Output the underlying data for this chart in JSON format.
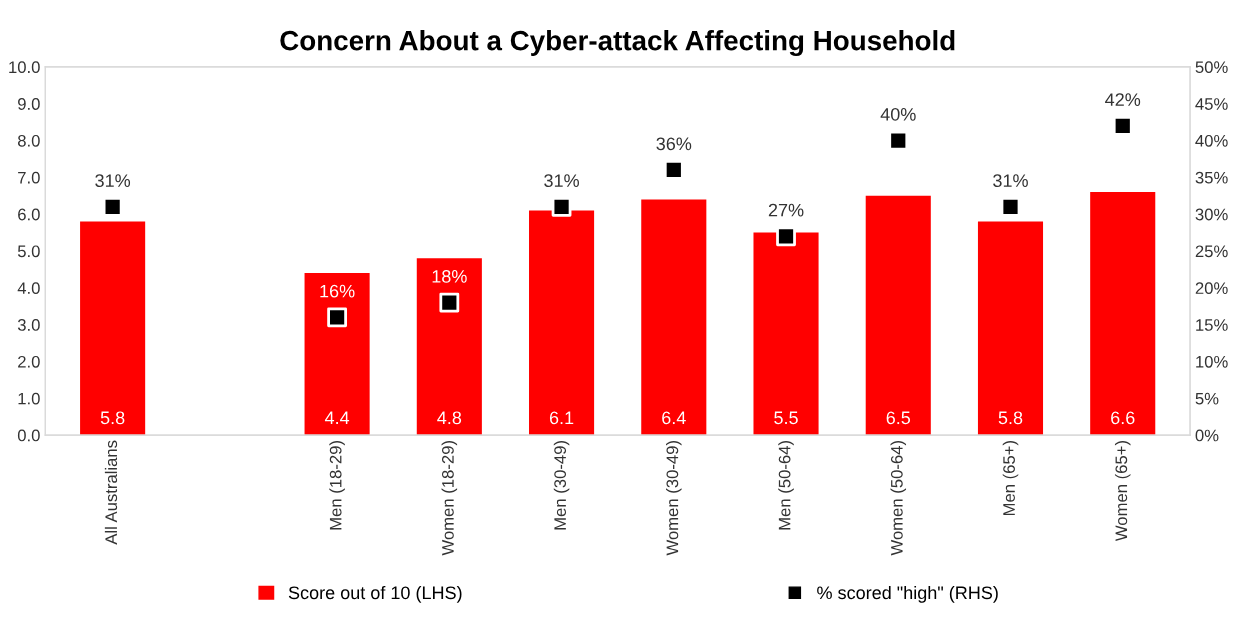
{
  "chart_data": {
    "type": "bar",
    "title": "Concern About a Cyber-attack Affecting Household",
    "categories": [
      "All Australians",
      null,
      "Men (18-29)",
      "Women (18-29)",
      "Men (30-49)",
      "Women (30-49)",
      "Men (50-64)",
      "Women (50-64)",
      "Men (65+)",
      "Women (65+)"
    ],
    "series": [
      {
        "name": "Score out of 10 (LHS)",
        "color": "#ff0000",
        "values": [
          5.8,
          null,
          4.4,
          4.8,
          6.1,
          6.4,
          5.5,
          6.5,
          5.8,
          6.6
        ],
        "data_labels": true
      },
      {
        "name": "% scored \"high\" (RHS)",
        "type": "scatter",
        "axis": "y2",
        "color": "#000000",
        "marker": "square",
        "values": [
          31,
          null,
          16,
          18,
          31,
          36,
          27,
          40,
          31,
          42
        ],
        "value_labels": [
          "31%",
          null,
          "16%",
          "18%",
          "31%",
          "36%",
          "27%",
          "40%",
          "31%",
          "42%"
        ]
      }
    ],
    "ylim": [
      0,
      10
    ],
    "yticks": [
      {
        "value": 0,
        "label": "0.0"
      },
      {
        "value": 1,
        "label": "1.0"
      },
      {
        "value": 2,
        "label": "2.0"
      },
      {
        "value": 3,
        "label": "3.0"
      },
      {
        "value": 4,
        "label": "4.0"
      },
      {
        "value": 5,
        "label": "5.0"
      },
      {
        "value": 6,
        "label": "6.0"
      },
      {
        "value": 7,
        "label": "7.0"
      },
      {
        "value": 8,
        "label": "8.0"
      },
      {
        "value": 9,
        "label": "9.0"
      },
      {
        "value": 10,
        "label": "10.0"
      }
    ],
    "y2lim": [
      0,
      50
    ],
    "y2ticks": [
      {
        "value": 0,
        "label": "0%"
      },
      {
        "value": 5,
        "label": "5%"
      },
      {
        "value": 10,
        "label": "10%"
      },
      {
        "value": 15,
        "label": "15%"
      },
      {
        "value": 20,
        "label": "20%"
      },
      {
        "value": 25,
        "label": "25%"
      },
      {
        "value": 30,
        "label": "30%"
      },
      {
        "value": 35,
        "label": "35%"
      },
      {
        "value": 40,
        "label": "40%"
      },
      {
        "value": 45,
        "label": "45%"
      },
      {
        "value": 50,
        "label": "50%"
      }
    ],
    "grid": false,
    "legend": "bottom"
  }
}
